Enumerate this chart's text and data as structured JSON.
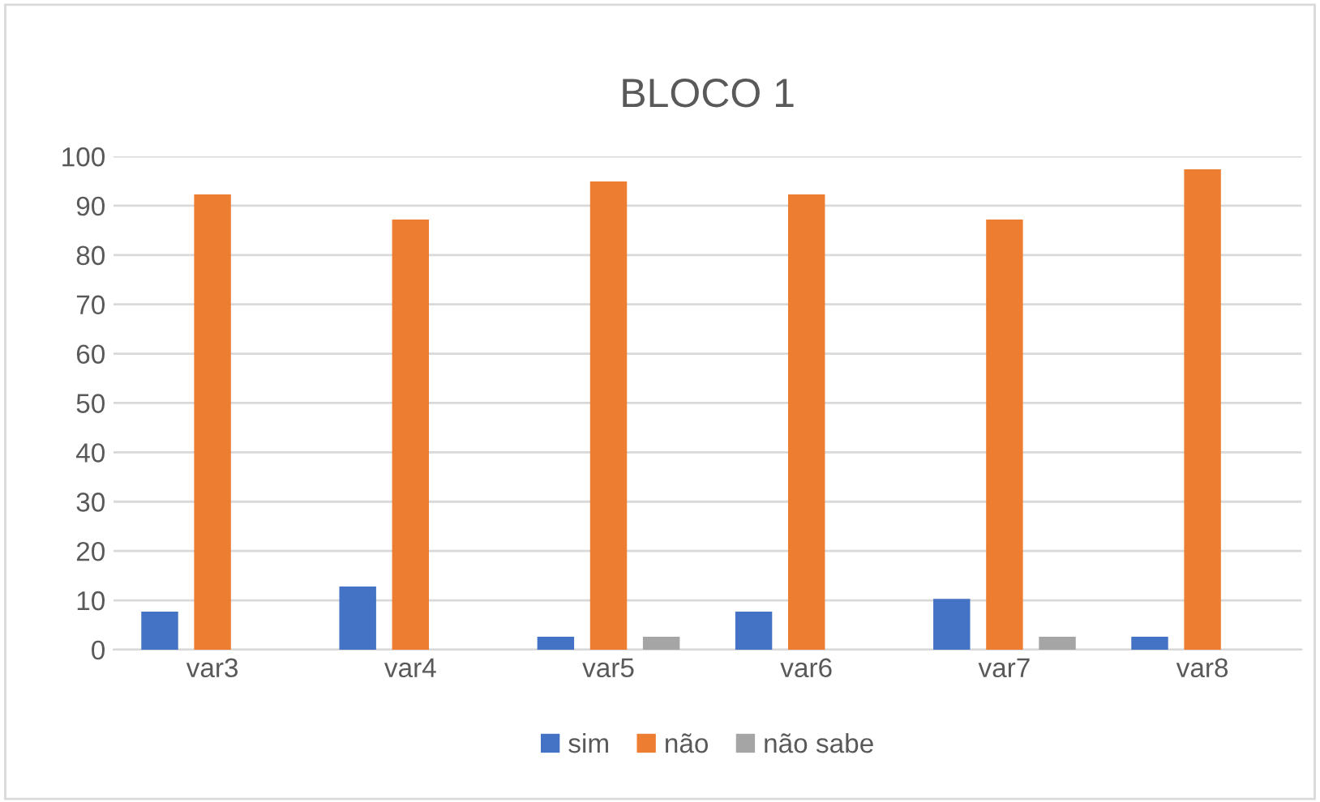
{
  "chart_data": {
    "type": "bar",
    "title": "BLOCO 1",
    "categories": [
      "var3",
      "var4",
      "var5",
      "var6",
      "var7",
      "var8"
    ],
    "series": [
      {
        "name": "sim",
        "color": "#4472c4",
        "values": [
          7.7,
          12.8,
          2.6,
          7.7,
          10.3,
          2.6
        ]
      },
      {
        "name": "não",
        "color": "#ed7d31",
        "values": [
          92.3,
          87.2,
          94.9,
          92.3,
          87.2,
          97.4
        ]
      },
      {
        "name": "não sabe",
        "color": "#a5a5a5",
        "values": [
          0,
          0,
          2.6,
          0,
          2.6,
          0
        ]
      }
    ],
    "ylim": [
      0,
      100
    ],
    "yticks": [
      0,
      10,
      20,
      30,
      40,
      50,
      60,
      70,
      80,
      90,
      100
    ],
    "grid": "y",
    "legend": "bottom"
  }
}
